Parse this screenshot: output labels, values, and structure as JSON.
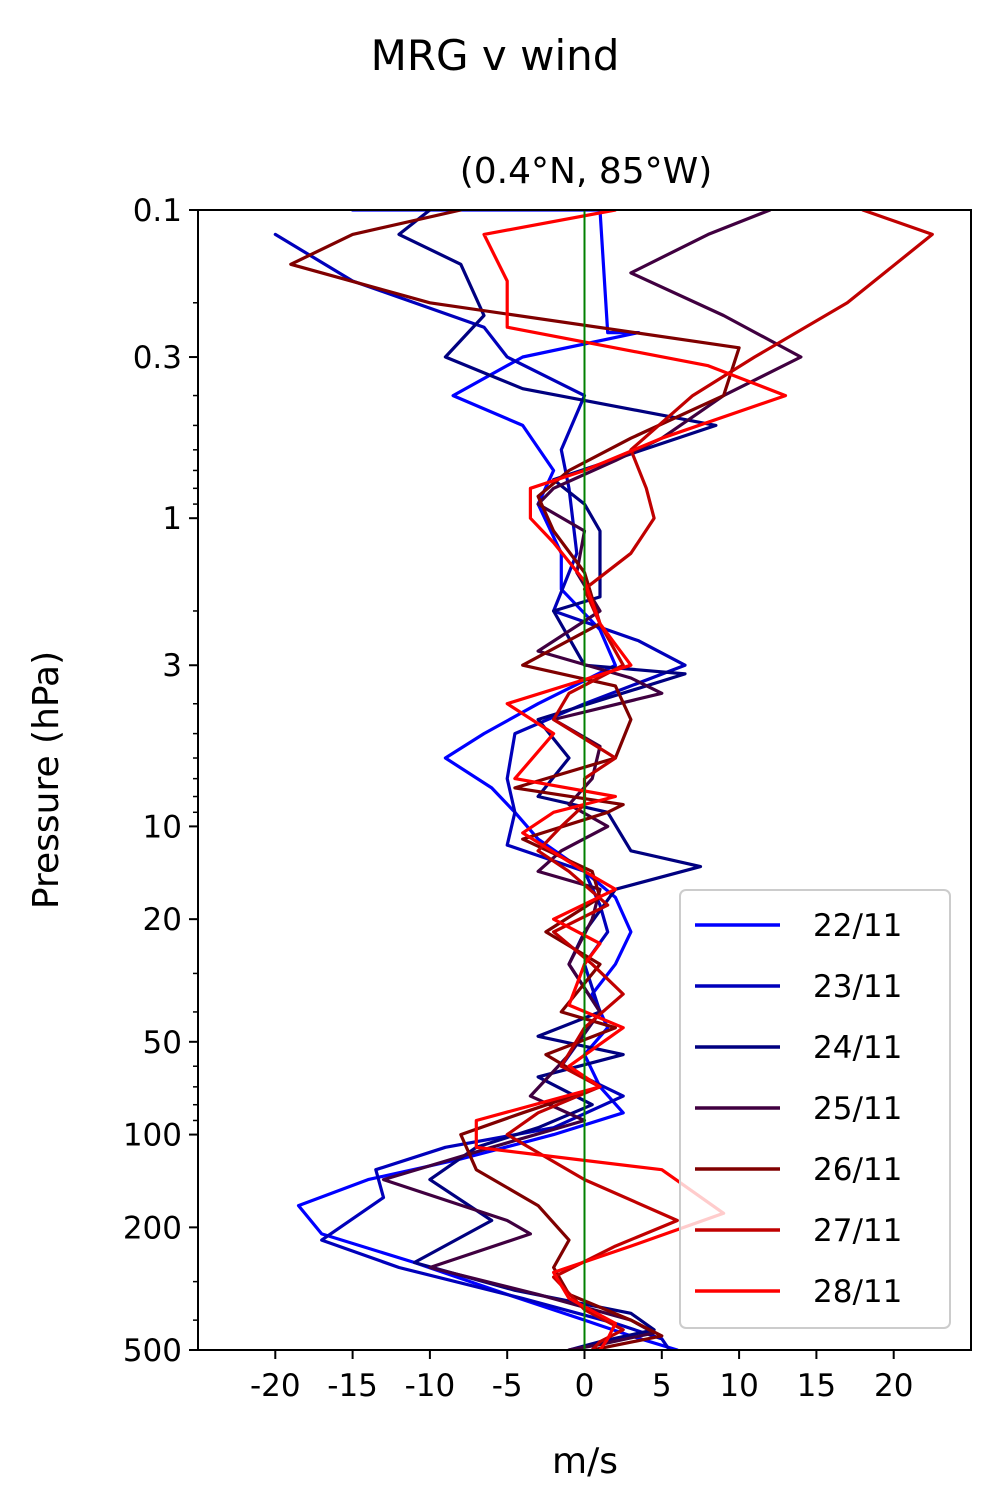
{
  "chart_data": {
    "type": "line",
    "title": "MRG v wind",
    "subtitle": "(0.4°N, 85°W)",
    "xlabel": "m/s",
    "ylabel": "Pressure (hPa)",
    "xlim": [
      -25,
      25
    ],
    "ylim": [
      500,
      0.1
    ],
    "yscale": "log",
    "x_ticks": [
      -20,
      -15,
      -10,
      -5,
      0,
      5,
      10,
      15,
      20
    ],
    "x_tick_labels": [
      "-20",
      "-15",
      "-10",
      "-5",
      "0",
      "5",
      "10",
      "15",
      "20"
    ],
    "y_ticks": [
      0.1,
      0.3,
      1,
      3,
      10,
      20,
      50,
      100,
      200,
      500
    ],
    "y_tick_labels": [
      "0.1",
      "0.3",
      "1",
      "3",
      "10",
      "20",
      "50",
      "100",
      "200",
      "500"
    ],
    "reference_line": {
      "x": 0,
      "color": "#008000"
    },
    "grid": false,
    "legend_position": "lower right",
    "series": [
      {
        "name": "22/11",
        "color": "#0000ff",
        "points": [
          [
            -15,
            0.1
          ],
          [
            1,
            0.1
          ],
          [
            1.5,
            0.25
          ],
          [
            3.5,
            0.25
          ],
          [
            -4,
            0.3
          ],
          [
            -8.5,
            0.4
          ],
          [
            -4,
            0.5
          ],
          [
            -2,
            0.7
          ],
          [
            -3,
            0.9
          ],
          [
            -1.5,
            1.3
          ],
          [
            -1.5,
            1.7
          ],
          [
            1,
            2.3
          ],
          [
            2,
            3
          ],
          [
            -3,
            4
          ],
          [
            -6.5,
            5
          ],
          [
            -9,
            6
          ],
          [
            -6,
            7.5
          ],
          [
            -4.5,
            9
          ],
          [
            -3,
            11
          ],
          [
            0,
            14
          ],
          [
            2,
            17
          ],
          [
            3,
            22
          ],
          [
            2,
            28
          ],
          [
            0.5,
            35
          ],
          [
            1.5,
            45
          ],
          [
            0,
            55
          ],
          [
            1,
            70
          ],
          [
            2.5,
            85
          ],
          [
            -2,
            100
          ],
          [
            -8,
            120
          ],
          [
            -14,
            140
          ],
          [
            -18.5,
            170
          ],
          [
            -17,
            210
          ],
          [
            -11,
            260
          ],
          [
            -5,
            330
          ],
          [
            0,
            400
          ],
          [
            3,
            450
          ],
          [
            6,
            500
          ]
        ]
      },
      {
        "name": "23/11",
        "color": "#0000bb",
        "points": [
          [
            -20,
            0.12
          ],
          [
            -15,
            0.17
          ],
          [
            -6.5,
            0.24
          ],
          [
            -5,
            0.3
          ],
          [
            0,
            0.4
          ],
          [
            -1.5,
            0.6
          ],
          [
            -1,
            0.8
          ],
          [
            -0.5,
            1.3
          ],
          [
            -2,
            2
          ],
          [
            3.5,
            2.5
          ],
          [
            6.5,
            3
          ],
          [
            0,
            4
          ],
          [
            -4.5,
            5
          ],
          [
            -5,
            7
          ],
          [
            -4.5,
            9
          ],
          [
            -5,
            11.5
          ],
          [
            0,
            14
          ],
          [
            1,
            18
          ],
          [
            1.5,
            22
          ],
          [
            0,
            28
          ],
          [
            1,
            40
          ],
          [
            -1.5,
            60
          ],
          [
            2.5,
            75
          ],
          [
            -2,
            95
          ],
          [
            -9,
            110
          ],
          [
            -13.5,
            130
          ],
          [
            -13,
            160
          ],
          [
            -17,
            220
          ],
          [
            -12,
            270
          ],
          [
            -4,
            340
          ],
          [
            2,
            410
          ],
          [
            5,
            460
          ],
          [
            5.5,
            500
          ]
        ]
      },
      {
        "name": "24/11",
        "color": "#000080",
        "points": [
          [
            -10,
            0.1
          ],
          [
            -12,
            0.12
          ],
          [
            -8,
            0.15
          ],
          [
            -6.5,
            0.22
          ],
          [
            -9,
            0.3
          ],
          [
            -4,
            0.38
          ],
          [
            8.5,
            0.5
          ],
          [
            -2,
            0.75
          ],
          [
            0,
            0.9
          ],
          [
            1,
            1.1
          ],
          [
            1,
            1.8
          ],
          [
            -2,
            2
          ],
          [
            0,
            3
          ],
          [
            6.5,
            3.2
          ],
          [
            -3,
            4.5
          ],
          [
            -1,
            6
          ],
          [
            -3,
            8
          ],
          [
            1.5,
            9
          ],
          [
            3,
            12
          ],
          [
            7.5,
            13.5
          ],
          [
            2,
            16
          ],
          [
            0,
            22
          ],
          [
            -1,
            28
          ],
          [
            1,
            40
          ],
          [
            -3,
            48
          ],
          [
            2.5,
            55
          ],
          [
            -3,
            65
          ],
          [
            0.5,
            80
          ],
          [
            -3,
            95
          ],
          [
            -7,
            110
          ],
          [
            -10,
            140
          ],
          [
            -6,
            190
          ],
          [
            -11,
            260
          ],
          [
            -4.5,
            320
          ],
          [
            3,
            380
          ],
          [
            4.5,
            430
          ],
          [
            1,
            470
          ],
          [
            -1,
            500
          ]
        ]
      },
      {
        "name": "25/11",
        "color": "#400040",
        "points": [
          [
            12,
            0.1
          ],
          [
            8,
            0.12
          ],
          [
            3,
            0.16
          ],
          [
            9,
            0.22
          ],
          [
            14,
            0.3
          ],
          [
            9,
            0.4
          ],
          [
            5,
            0.55
          ],
          [
            2,
            0.65
          ],
          [
            -2,
            0.8
          ],
          [
            -3,
            0.9
          ],
          [
            0,
            1.1
          ],
          [
            -0.5,
            1.5
          ],
          [
            1,
            2
          ],
          [
            -3,
            2.7
          ],
          [
            3,
            3.3
          ],
          [
            5,
            3.7
          ],
          [
            -2,
            4.5
          ],
          [
            1,
            5.5
          ],
          [
            0.5,
            7
          ],
          [
            -1,
            8.5
          ],
          [
            1.5,
            10
          ],
          [
            -1.5,
            12
          ],
          [
            -3,
            14
          ],
          [
            1,
            16
          ],
          [
            0.5,
            20
          ],
          [
            -1,
            28
          ],
          [
            1,
            40
          ],
          [
            -1,
            55
          ],
          [
            -3.5,
            75
          ],
          [
            0,
            90
          ],
          [
            -6,
            110
          ],
          [
            -13,
            140
          ],
          [
            -5,
            190
          ],
          [
            -3.5,
            210
          ],
          [
            -10,
            270
          ],
          [
            -3,
            330
          ],
          [
            3,
            400
          ],
          [
            4.5,
            440
          ],
          [
            1,
            480
          ],
          [
            -1,
            500
          ]
        ]
      },
      {
        "name": "26/11",
        "color": "#800000",
        "points": [
          [
            -8,
            0.1
          ],
          [
            -15,
            0.12
          ],
          [
            -19,
            0.15
          ],
          [
            -10,
            0.2
          ],
          [
            10,
            0.28
          ],
          [
            9,
            0.4
          ],
          [
            3,
            0.55
          ],
          [
            -1,
            0.7
          ],
          [
            -3,
            0.85
          ],
          [
            -2,
            1.1
          ],
          [
            0,
            1.5
          ],
          [
            1,
            2.2
          ],
          [
            -4,
            3
          ],
          [
            2,
            3.5
          ],
          [
            3,
            4.5
          ],
          [
            2,
            6
          ],
          [
            -4.5,
            7.5
          ],
          [
            2.5,
            8.5
          ],
          [
            1.5,
            9
          ],
          [
            -4,
            11
          ],
          [
            0.5,
            14
          ],
          [
            1,
            17
          ],
          [
            -2.5,
            22
          ],
          [
            1,
            28
          ],
          [
            -1.5,
            40
          ],
          [
            2,
            45
          ],
          [
            -2.5,
            55
          ],
          [
            1,
            70
          ],
          [
            -4,
            85
          ],
          [
            -8,
            100
          ],
          [
            -7,
            130
          ],
          [
            -3,
            170
          ],
          [
            -1,
            220
          ],
          [
            -2,
            270
          ],
          [
            -1,
            330
          ],
          [
            3,
            400
          ],
          [
            5,
            450
          ],
          [
            0.5,
            500
          ]
        ]
      },
      {
        "name": "27/11",
        "color": "#c00000",
        "points": [
          [
            18,
            0.1
          ],
          [
            22.5,
            0.12
          ],
          [
            17,
            0.2
          ],
          [
            11,
            0.3
          ],
          [
            7,
            0.4
          ],
          [
            3,
            0.6
          ],
          [
            4,
            0.8
          ],
          [
            4.5,
            1.0
          ],
          [
            3,
            1.3
          ],
          [
            0,
            1.7
          ],
          [
            1,
            2.2
          ],
          [
            2.5,
            3
          ],
          [
            -1,
            3.7
          ],
          [
            -2,
            4.5
          ],
          [
            2,
            6
          ],
          [
            0,
            7
          ],
          [
            0,
            8.5
          ],
          [
            -1.5,
            10
          ],
          [
            -3,
            12
          ],
          [
            -1,
            14
          ],
          [
            1.5,
            18
          ],
          [
            -2,
            22
          ],
          [
            0.5,
            28
          ],
          [
            2.5,
            35
          ],
          [
            0,
            45
          ],
          [
            -1.5,
            60
          ],
          [
            1,
            70
          ],
          [
            -3,
            85
          ],
          [
            -5,
            100
          ],
          [
            0,
            140
          ],
          [
            6,
            190
          ],
          [
            2,
            230
          ],
          [
            -2,
            290
          ],
          [
            0,
            370
          ],
          [
            2.5,
            430
          ],
          [
            1,
            470
          ],
          [
            0.5,
            500
          ]
        ]
      },
      {
        "name": "28/11",
        "color": "#ff0000",
        "points": [
          [
            2,
            0.1
          ],
          [
            -6.5,
            0.12
          ],
          [
            -5,
            0.17
          ],
          [
            -5,
            0.24
          ],
          [
            8,
            0.32
          ],
          [
            13,
            0.4
          ],
          [
            5,
            0.55
          ],
          [
            0,
            0.7
          ],
          [
            -3.5,
            0.8
          ],
          [
            -3.5,
            1.0
          ],
          [
            -2,
            1.2
          ],
          [
            0,
            1.6
          ],
          [
            1,
            2.2
          ],
          [
            3,
            3
          ],
          [
            -5,
            4
          ],
          [
            -2,
            5
          ],
          [
            -4.5,
            7
          ],
          [
            2,
            8
          ],
          [
            -2,
            9
          ],
          [
            -4,
            10.5
          ],
          [
            0,
            14
          ],
          [
            2,
            16
          ],
          [
            -2,
            20
          ],
          [
            1,
            24
          ],
          [
            0,
            28
          ],
          [
            -1,
            38
          ],
          [
            2.5,
            45
          ],
          [
            -1,
            60
          ],
          [
            1,
            70
          ],
          [
            -7,
            90
          ],
          [
            -7,
            110
          ],
          [
            5,
            130
          ],
          [
            9,
            180
          ],
          [
            3,
            230
          ],
          [
            -2,
            280
          ],
          [
            -1,
            340
          ],
          [
            2,
            410
          ],
          [
            1.5,
            460
          ],
          [
            1,
            500
          ]
        ]
      }
    ]
  }
}
